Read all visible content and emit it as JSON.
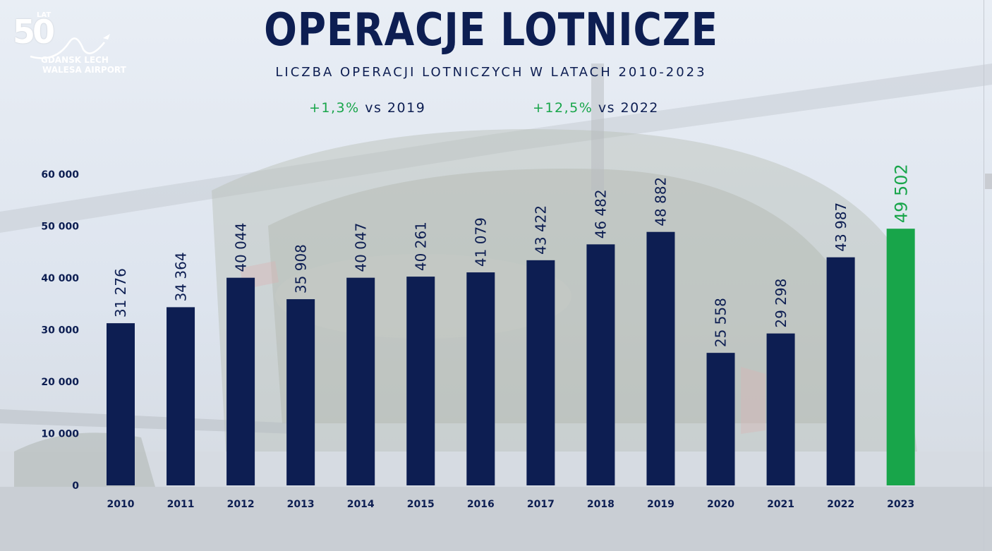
{
  "logo": {
    "number": "50",
    "lat": "LAT",
    "line1": "GDANSK LECH",
    "line2": "WALESA AIRPORT"
  },
  "title": "OPERACJE LOTNICZE",
  "subtitle": "LICZBA OPERACJI LOTNICZYCH W LATACH 2010-2023",
  "comparisons": [
    {
      "pct": "+1,3%",
      "rest": "vs 2019"
    },
    {
      "pct": "+12,5%",
      "rest": "vs 2022"
    }
  ],
  "colors": {
    "navy": "#0d1e52",
    "green": "#18a54a"
  },
  "chart_data": {
    "type": "bar",
    "categories": [
      "2010",
      "2011",
      "2012",
      "2013",
      "2014",
      "2015",
      "2016",
      "2017",
      "2018",
      "2019",
      "2020",
      "2021",
      "2022",
      "2023"
    ],
    "values": [
      31276,
      34364,
      40044,
      35908,
      40047,
      40261,
      41079,
      43422,
      46482,
      48882,
      25558,
      29298,
      43987,
      49502
    ],
    "value_labels": [
      "31 276",
      "34 364",
      "40 044",
      "35 908",
      "40 047",
      "40 261",
      "41 079",
      "43 422",
      "46 482",
      "48 882",
      "25 558",
      "29 298",
      "43 987",
      "49 502"
    ],
    "highlight_index": 13,
    "ylim": [
      0,
      60000
    ],
    "yticks": [
      0,
      10000,
      20000,
      30000,
      40000,
      50000,
      60000
    ],
    "ytick_labels": [
      "0",
      "10 000",
      "20 000",
      "30 000",
      "40 000",
      "50 000",
      "60 000"
    ],
    "grid": false,
    "legend": "none"
  }
}
